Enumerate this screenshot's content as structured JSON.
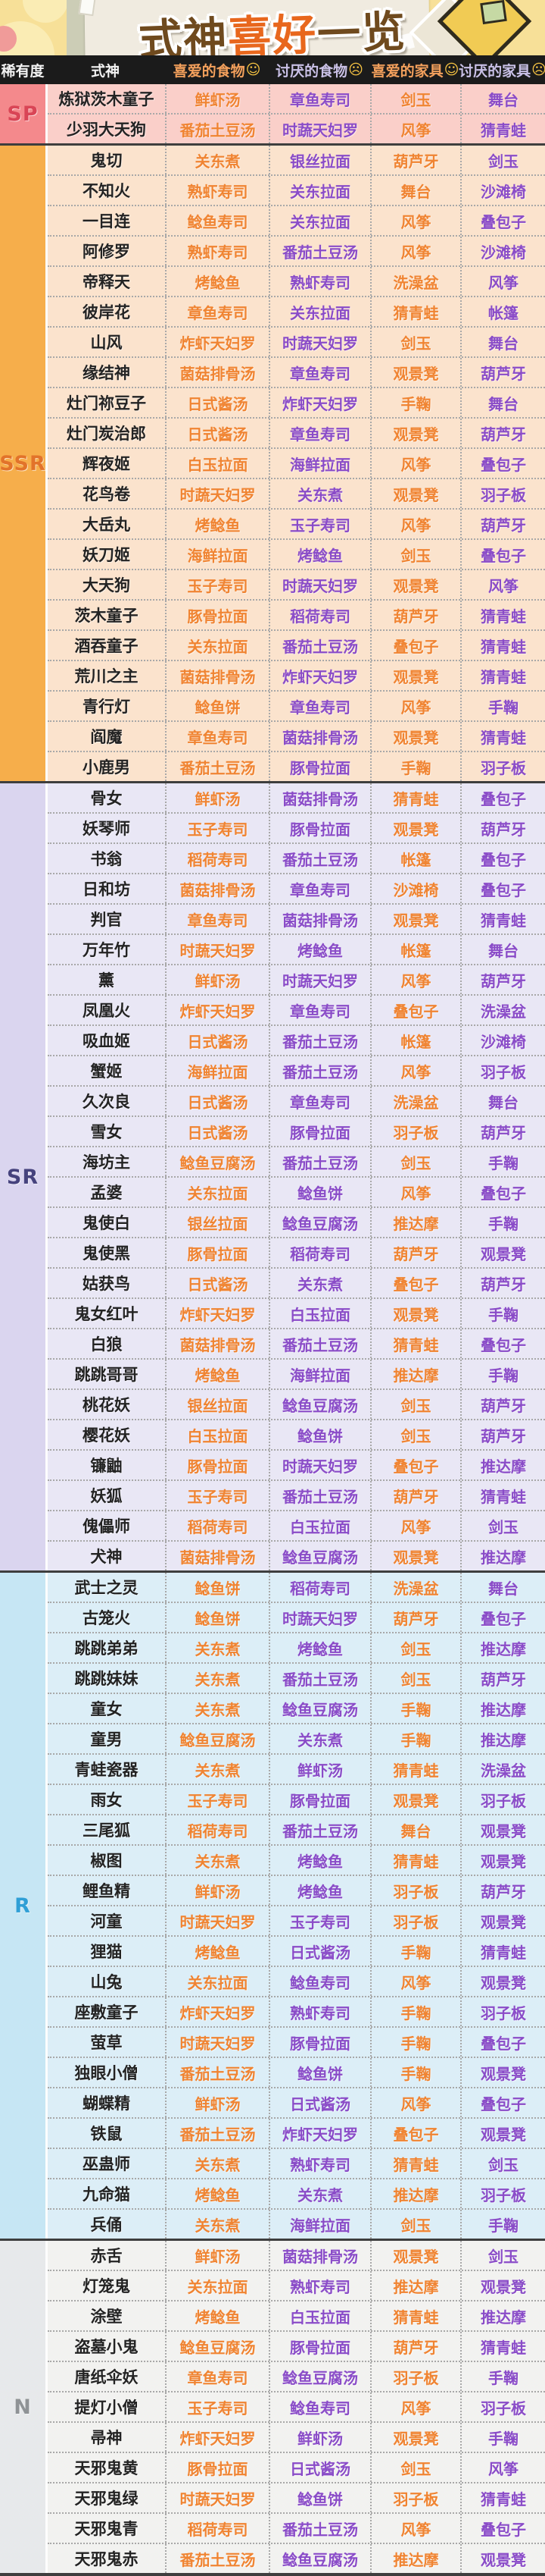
{
  "title": {
    "part1": "式神",
    "part2": "喜好",
    "part3": "一览"
  },
  "columns": [
    {
      "label": "稀有度",
      "type": "plain"
    },
    {
      "label": "式神",
      "type": "plain"
    },
    {
      "label": "喜爱的食物",
      "emoji": "☺",
      "type": "fav"
    },
    {
      "label": "讨厌的食物",
      "emoji": "☹",
      "type": "dis"
    },
    {
      "label": "喜爱的家具",
      "emoji": "☺",
      "type": "fav"
    },
    {
      "label": "讨厌的家具",
      "emoji": "☹",
      "type": "dis"
    }
  ],
  "colors": {
    "header_bg": "#1B1B1B",
    "favorite_text": "#F08432",
    "disliked_text": "#8A4CC8",
    "name_text": "#232323",
    "banner_bg": "#F7E098",
    "title_brown": "#6F4A1E",
    "title_orange": "#E8671D"
  },
  "sections": [
    {
      "rarity": "SP",
      "label_bg": "#F4898C",
      "label_color": "#D94556",
      "row_bg": "#FACFC9",
      "rows": [
        [
          "炼狱茨木童子",
          "鲜虾汤",
          "章鱼寿司",
          "剑玉",
          "舞台"
        ],
        [
          "少羽大天狗",
          "番茄土豆汤",
          "时蔬天妇罗",
          "风筝",
          "猜青蛙"
        ]
      ]
    },
    {
      "rarity": "SSR",
      "label_bg": "#F6AE4B",
      "label_color": "#E2732A",
      "row_bg": "#FBE3CD",
      "rows": [
        [
          "鬼切",
          "关东煮",
          "银丝拉面",
          "葫芦牙",
          "剑玉"
        ],
        [
          "不知火",
          "熟虾寿司",
          "关东拉面",
          "舞台",
          "沙滩椅"
        ],
        [
          "一目连",
          "鲶鱼寿司",
          "关东拉面",
          "风筝",
          "叠包子"
        ],
        [
          "阿修罗",
          "熟虾寿司",
          "番茄土豆汤",
          "风筝",
          "沙滩椅"
        ],
        [
          "帝释天",
          "烤鲶鱼",
          "熟虾寿司",
          "洗澡盆",
          "风筝"
        ],
        [
          "彼岸花",
          "章鱼寿司",
          "关东拉面",
          "猜青蛙",
          "帐篷"
        ],
        [
          "山风",
          "炸虾天妇罗",
          "时蔬天妇罗",
          "剑玉",
          "舞台"
        ],
        [
          "缘结神",
          "菌菇排骨汤",
          "章鱼寿司",
          "观景凳",
          "葫芦牙"
        ],
        [
          "灶门祢豆子",
          "日式酱汤",
          "炸虾天妇罗",
          "手鞠",
          "舞台"
        ],
        [
          "灶门炭治郎",
          "日式酱汤",
          "章鱼寿司",
          "观景凳",
          "葫芦牙"
        ],
        [
          "辉夜姬",
          "白玉拉面",
          "海鲜拉面",
          "风筝",
          "叠包子"
        ],
        [
          "花鸟卷",
          "时蔬天妇罗",
          "关东煮",
          "观景凳",
          "羽子板"
        ],
        [
          "大岳丸",
          "烤鲶鱼",
          "玉子寿司",
          "风筝",
          "葫芦牙"
        ],
        [
          "妖刀姬",
          "海鲜拉面",
          "烤鲶鱼",
          "剑玉",
          "叠包子"
        ],
        [
          "大天狗",
          "玉子寿司",
          "时蔬天妇罗",
          "观景凳",
          "风筝"
        ],
        [
          "茨木童子",
          "豚骨拉面",
          "稻荷寿司",
          "葫芦牙",
          "猜青蛙"
        ],
        [
          "酒吞童子",
          "关东拉面",
          "番茄土豆汤",
          "叠包子",
          "猜青蛙"
        ],
        [
          "荒川之主",
          "菌菇排骨汤",
          "炸虾天妇罗",
          "观景凳",
          "猜青蛙"
        ],
        [
          "青行灯",
          "鲶鱼饼",
          "章鱼寿司",
          "风筝",
          "手鞠"
        ],
        [
          "阎魔",
          "章鱼寿司",
          "菌菇排骨汤",
          "观景凳",
          "猜青蛙"
        ],
        [
          "小鹿男",
          "番茄土豆汤",
          "豚骨拉面",
          "手鞠",
          "羽子板"
        ]
      ]
    },
    {
      "rarity": "SR",
      "label_bg": "#DAD5EF",
      "label_color": "#45427D",
      "row_bg": "#E9E7F5",
      "rows": [
        [
          "骨女",
          "鲜虾汤",
          "菌菇排骨汤",
          "猜青蛙",
          "叠包子"
        ],
        [
          "妖琴师",
          "玉子寿司",
          "豚骨拉面",
          "观景凳",
          "葫芦牙"
        ],
        [
          "书翁",
          "稻荷寿司",
          "番茄土豆汤",
          "帐篷",
          "叠包子"
        ],
        [
          "日和坊",
          "菌菇排骨汤",
          "章鱼寿司",
          "沙滩椅",
          "叠包子"
        ],
        [
          "判官",
          "章鱼寿司",
          "菌菇排骨汤",
          "观景凳",
          "猜青蛙"
        ],
        [
          "万年竹",
          "时蔬天妇罗",
          "烤鲶鱼",
          "帐篷",
          "舞台"
        ],
        [
          "薰",
          "鲜虾汤",
          "时蔬天妇罗",
          "风筝",
          "葫芦牙"
        ],
        [
          "凤凰火",
          "炸虾天妇罗",
          "章鱼寿司",
          "叠包子",
          "洗澡盆"
        ],
        [
          "吸血姬",
          "日式酱汤",
          "番茄土豆汤",
          "帐篷",
          "沙滩椅"
        ],
        [
          "蟹姬",
          "海鲜拉面",
          "番茄土豆汤",
          "风筝",
          "羽子板"
        ],
        [
          "久次良",
          "日式酱汤",
          "章鱼寿司",
          "洗澡盆",
          "舞台"
        ],
        [
          "雪女",
          "日式酱汤",
          "豚骨拉面",
          "羽子板",
          "葫芦牙"
        ],
        [
          "海坊主",
          "鲶鱼豆腐汤",
          "番茄土豆汤",
          "剑玉",
          "手鞠"
        ],
        [
          "孟婆",
          "关东拉面",
          "鲶鱼饼",
          "风筝",
          "叠包子"
        ],
        [
          "鬼使白",
          "银丝拉面",
          "鲶鱼豆腐汤",
          "推达摩",
          "手鞠"
        ],
        [
          "鬼使黑",
          "豚骨拉面",
          "稻荷寿司",
          "葫芦牙",
          "观景凳"
        ],
        [
          "姑获鸟",
          "日式酱汤",
          "关东煮",
          "叠包子",
          "葫芦牙"
        ],
        [
          "鬼女红叶",
          "炸虾天妇罗",
          "白玉拉面",
          "观景凳",
          "手鞠"
        ],
        [
          "白狼",
          "菌菇排骨汤",
          "番茄土豆汤",
          "猜青蛙",
          "叠包子"
        ],
        [
          "跳跳哥哥",
          "烤鲶鱼",
          "海鲜拉面",
          "推达摩",
          "手鞠"
        ],
        [
          "桃花妖",
          "银丝拉面",
          "鲶鱼豆腐汤",
          "剑玉",
          "葫芦牙"
        ],
        [
          "樱花妖",
          "白玉拉面",
          "鲶鱼饼",
          "剑玉",
          "葫芦牙"
        ],
        [
          "镰鼬",
          "豚骨拉面",
          "时蔬天妇罗",
          "叠包子",
          "推达摩"
        ],
        [
          "妖狐",
          "玉子寿司",
          "番茄土豆汤",
          "葫芦牙",
          "猜青蛙"
        ],
        [
          "傀儡师",
          "稻荷寿司",
          "白玉拉面",
          "风筝",
          "剑玉"
        ],
        [
          "犬神",
          "菌菇排骨汤",
          "鲶鱼豆腐汤",
          "观景凳",
          "推达摩"
        ]
      ]
    },
    {
      "rarity": "R",
      "label_bg": "#C6E6F4",
      "label_color": "#2F9FD6",
      "row_bg": "#DCEEF7",
      "rows": [
        [
          "武士之灵",
          "鲶鱼饼",
          "稻荷寿司",
          "洗澡盆",
          "舞台"
        ],
        [
          "古笼火",
          "鲶鱼饼",
          "时蔬天妇罗",
          "葫芦牙",
          "叠包子"
        ],
        [
          "跳跳弟弟",
          "关东煮",
          "烤鲶鱼",
          "剑玉",
          "推达摩"
        ],
        [
          "跳跳妹妹",
          "关东煮",
          "番茄土豆汤",
          "剑玉",
          "葫芦牙"
        ],
        [
          "童女",
          "关东煮",
          "鲶鱼豆腐汤",
          "手鞠",
          "推达摩"
        ],
        [
          "童男",
          "鲶鱼豆腐汤",
          "关东煮",
          "手鞠",
          "推达摩"
        ],
        [
          "青蛙瓷器",
          "关东煮",
          "鲜虾汤",
          "猜青蛙",
          "洗澡盆"
        ],
        [
          "雨女",
          "玉子寿司",
          "豚骨拉面",
          "观景凳",
          "羽子板"
        ],
        [
          "三尾狐",
          "稻荷寿司",
          "番茄土豆汤",
          "舞台",
          "观景凳"
        ],
        [
          "椒图",
          "关东煮",
          "烤鲶鱼",
          "猜青蛙",
          "观景凳"
        ],
        [
          "鲤鱼精",
          "鲜虾汤",
          "烤鲶鱼",
          "羽子板",
          "葫芦牙"
        ],
        [
          "河童",
          "时蔬天妇罗",
          "玉子寿司",
          "羽子板",
          "观景凳"
        ],
        [
          "狸猫",
          "烤鲶鱼",
          "日式酱汤",
          "手鞠",
          "猜青蛙"
        ],
        [
          "山兔",
          "关东拉面",
          "鲶鱼寿司",
          "风筝",
          "观景凳"
        ],
        [
          "座敷童子",
          "炸虾天妇罗",
          "熟虾寿司",
          "手鞠",
          "羽子板"
        ],
        [
          "萤草",
          "时蔬天妇罗",
          "豚骨拉面",
          "手鞠",
          "叠包子"
        ],
        [
          "独眼小僧",
          "番茄土豆汤",
          "鲶鱼饼",
          "手鞠",
          "观景凳"
        ],
        [
          "蝴蝶精",
          "鲜虾汤",
          "日式酱汤",
          "风筝",
          "叠包子"
        ],
        [
          "铁鼠",
          "番茄土豆汤",
          "炸虾天妇罗",
          "叠包子",
          "观景凳"
        ],
        [
          "巫蛊师",
          "关东煮",
          "熟虾寿司",
          "猜青蛙",
          "剑玉"
        ],
        [
          "九命猫",
          "烤鲶鱼",
          "关东煮",
          "推达摩",
          "羽子板"
        ],
        [
          "兵俑",
          "关东煮",
          "海鲜拉面",
          "剑玉",
          "手鞠"
        ]
      ]
    },
    {
      "rarity": "N",
      "label_bg": "#E7E9EB",
      "label_color": "#8F9396",
      "row_bg": "#F2F2F0",
      "rows": [
        [
          "赤舌",
          "鲜虾汤",
          "菌菇排骨汤",
          "观景凳",
          "剑玉"
        ],
        [
          "灯笼鬼",
          "关东拉面",
          "熟虾寿司",
          "推达摩",
          "观景凳"
        ],
        [
          "涂壁",
          "烤鲶鱼",
          "白玉拉面",
          "猜青蛙",
          "推达摩"
        ],
        [
          "盗墓小鬼",
          "鲶鱼豆腐汤",
          "豚骨拉面",
          "葫芦牙",
          "猜青蛙"
        ],
        [
          "唐纸伞妖",
          "章鱼寿司",
          "鲶鱼豆腐汤",
          "羽子板",
          "手鞠"
        ],
        [
          "提灯小僧",
          "玉子寿司",
          "鲶鱼寿司",
          "风筝",
          "羽子板"
        ],
        [
          "帚神",
          "炸虾天妇罗",
          "鲜虾汤",
          "观景凳",
          "手鞠"
        ],
        [
          "天邪鬼黄",
          "豚骨拉面",
          "日式酱汤",
          "剑玉",
          "风筝"
        ],
        [
          "天邪鬼绿",
          "时蔬天妇罗",
          "鲶鱼饼",
          "羽子板",
          "猜青蛙"
        ],
        [
          "天邪鬼青",
          "稻荷寿司",
          "番茄土豆汤",
          "风筝",
          "叠包子"
        ],
        [
          "天邪鬼赤",
          "番茄土豆汤",
          "鲶鱼豆腐汤",
          "推达摩",
          "观景凳"
        ]
      ]
    }
  ]
}
